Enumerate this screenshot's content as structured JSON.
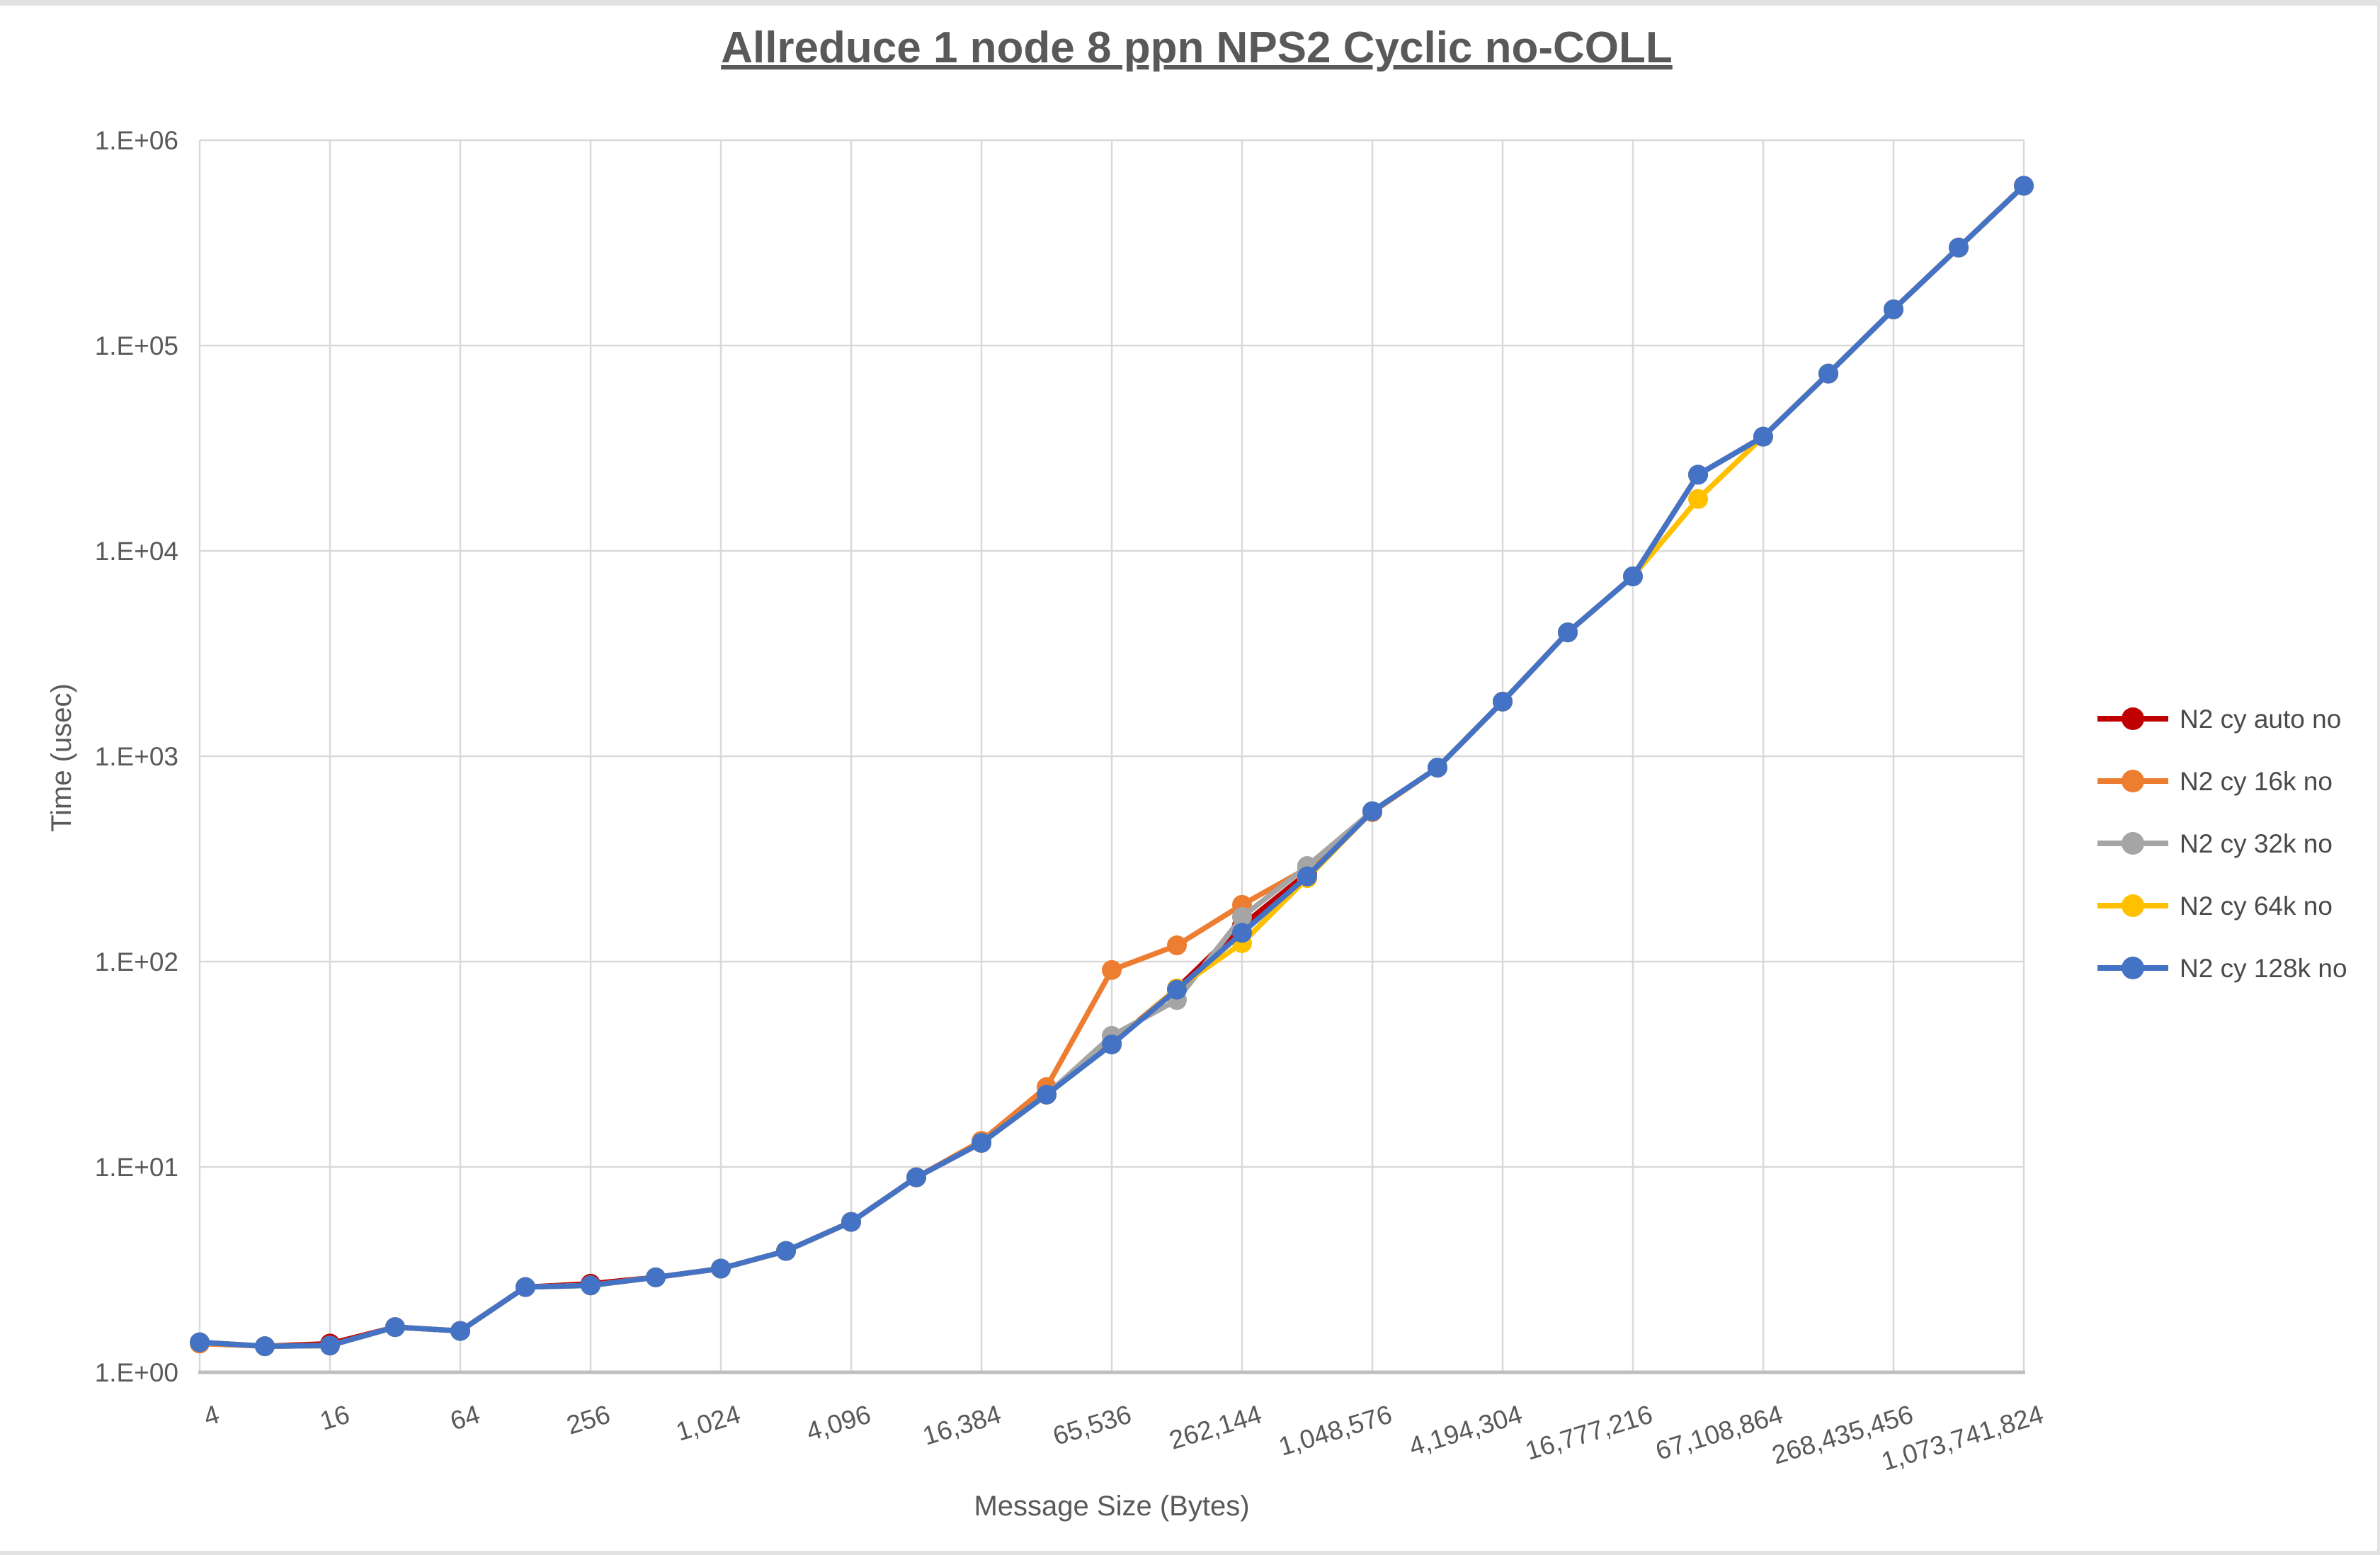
{
  "title": "Allreduce 1 node 8 ppn NPS2 Cyclic no-COLL",
  "axes": {
    "x_title": "Message Size (Bytes)",
    "y_title": "Time (usec)",
    "y_tick_labels": [
      "1.E+00",
      "1.E+01",
      "1.E+02",
      "1.E+03",
      "1.E+04",
      "1.E+05",
      "1.E+06"
    ],
    "x_tick_labels": [
      "4",
      "16",
      "64",
      "256",
      "1,024",
      "4,096",
      "16,384",
      "65,536",
      "262,144",
      "1,048,576",
      "4,194,304",
      "16,777,216",
      "67,108,864",
      "268,435,456",
      "1,073,741,824"
    ]
  },
  "colors": {
    "gridline": "#d9d9d9",
    "axis_line": "#bfbfbf",
    "text": "#595959",
    "series_auto": "#c00000",
    "series_16k": "#ed7d31",
    "series_32k": "#a5a5a5",
    "series_64k": "#ffc000",
    "series_128k": "#4472c4"
  },
  "chart_data": {
    "type": "line",
    "x_scale": "log2",
    "y_scale": "log10",
    "ylim": [
      1,
      1000000
    ],
    "grid": true,
    "legend_position": "right",
    "x": [
      4,
      8,
      16,
      32,
      64,
      128,
      256,
      512,
      1024,
      2048,
      4096,
      8192,
      16384,
      32768,
      65536,
      131072,
      262144,
      524288,
      1048576,
      2097152,
      4194304,
      8388608,
      16777216,
      33554432,
      67108864,
      134217728,
      268435456,
      536870912,
      1073741824
    ],
    "series": [
      {
        "name": "N2 cy auto no",
        "color": "#c00000",
        "values": [
          1.4,
          1.34,
          1.38,
          1.66,
          1.59,
          2.6,
          2.7,
          2.9,
          3.2,
          3.9,
          5.4,
          8.9,
          13.1,
          22.5,
          40,
          74,
          150,
          270,
          535,
          880,
          1845,
          4010,
          7515,
          23500,
          36000,
          73000,
          150000,
          300000,
          600000
        ]
      },
      {
        "name": "N2 cy 16k no",
        "color": "#ed7d31",
        "values": [
          1.38,
          1.34,
          1.35,
          1.66,
          1.59,
          2.6,
          2.65,
          2.9,
          3.2,
          3.9,
          5.4,
          8.9,
          13.4,
          24.5,
          91,
          120,
          189,
          285,
          535,
          880,
          1845,
          4010,
          7515,
          23500,
          36000,
          73000,
          150000,
          300000,
          600000
        ]
      },
      {
        "name": "N2 cy 32k no",
        "color": "#a5a5a5",
        "values": [
          1.4,
          1.34,
          1.35,
          1.66,
          1.59,
          2.6,
          2.65,
          2.9,
          3.2,
          3.9,
          5.4,
          8.9,
          13.1,
          22.5,
          43.5,
          65,
          165,
          292,
          540,
          880,
          1845,
          4010,
          7515,
          23500,
          36000,
          73000,
          150000,
          300000,
          600000
        ]
      },
      {
        "name": "N2 cy 64k no",
        "color": "#ffc000",
        "values": [
          1.4,
          1.34,
          1.35,
          1.66,
          1.59,
          2.6,
          2.65,
          2.9,
          3.2,
          3.9,
          5.4,
          8.9,
          13.1,
          22.5,
          39.5,
          74,
          123,
          255,
          540,
          880,
          1845,
          4010,
          7515,
          17900,
          36000,
          73000,
          150000,
          300000,
          600000
        ]
      },
      {
        "name": "N2 cy 128k no",
        "color": "#4472c4",
        "values": [
          1.4,
          1.34,
          1.35,
          1.66,
          1.59,
          2.6,
          2.65,
          2.9,
          3.2,
          3.9,
          5.4,
          8.9,
          13.1,
          22.5,
          39.5,
          73,
          138,
          260,
          540,
          880,
          1845,
          4010,
          7515,
          23500,
          36000,
          73000,
          150000,
          300000,
          600000
        ]
      }
    ]
  }
}
